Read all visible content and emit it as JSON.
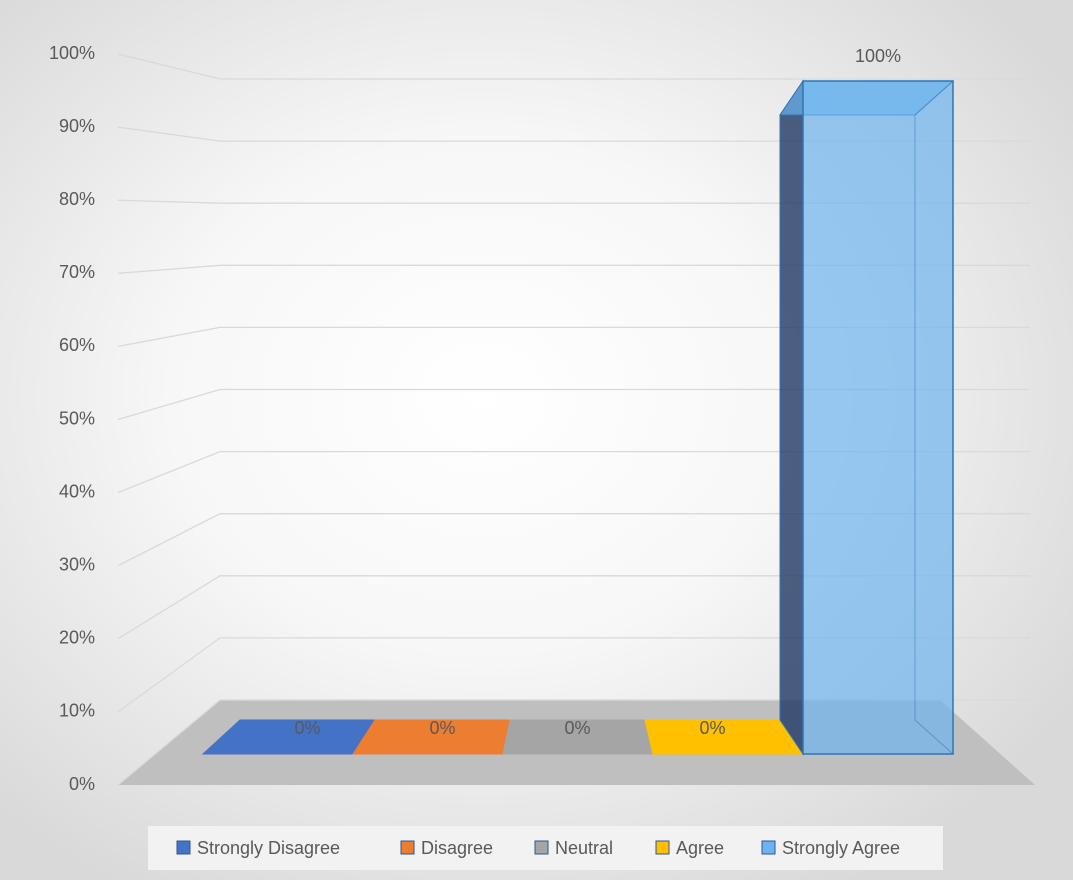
{
  "chart_data": {
    "type": "bar3d",
    "categories": [
      null
    ],
    "series": [
      {
        "name": "Strongly Disagree",
        "color": "#4472c4",
        "values": [
          0
        ],
        "value_labels": [
          "0%"
        ]
      },
      {
        "name": "Disagree",
        "color": "#ed7d31",
        "values": [
          0
        ],
        "value_labels": [
          "0%"
        ]
      },
      {
        "name": "Neutral",
        "color": "#a5a5a5",
        "values": [
          0
        ],
        "value_labels": [
          "0%"
        ]
      },
      {
        "name": "Agree",
        "color": "#ffc000",
        "values": [
          0
        ],
        "value_labels": [
          "0%"
        ]
      },
      {
        "name": "Strongly Agree",
        "color": "#6cb4ee",
        "values": [
          100
        ],
        "value_labels": [
          "100%"
        ]
      }
    ],
    "ylim": [
      0,
      100
    ],
    "yticks": [
      {
        "value": 0,
        "label": "0%"
      },
      {
        "value": 10,
        "label": "10%"
      },
      {
        "value": 20,
        "label": "20%"
      },
      {
        "value": 30,
        "label": "30%"
      },
      {
        "value": 40,
        "label": "40%"
      },
      {
        "value": 50,
        "label": "50%"
      },
      {
        "value": 60,
        "label": "60%"
      },
      {
        "value": 70,
        "label": "70%"
      },
      {
        "value": 80,
        "label": "80%"
      },
      {
        "value": 90,
        "label": "90%"
      },
      {
        "value": 100,
        "label": "100%"
      }
    ],
    "grid": true,
    "legend": "bottom"
  }
}
